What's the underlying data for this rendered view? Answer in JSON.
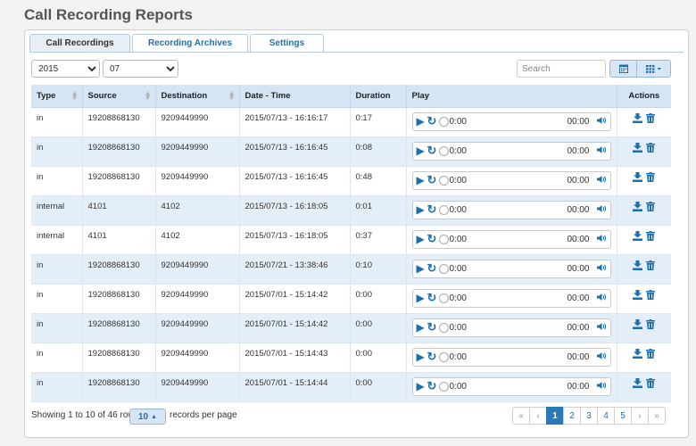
{
  "page": {
    "title": "Call Recording Reports"
  },
  "tabs": [
    {
      "label": "Call Recordings",
      "active": true
    },
    {
      "label": "Recording Archives",
      "active": false
    },
    {
      "label": "Settings",
      "active": false
    }
  ],
  "filters": {
    "year": "2015",
    "month": "07",
    "search_placeholder": "Search"
  },
  "columns": [
    "Type",
    "Source",
    "Destination",
    "Date - Time",
    "Duration",
    "Play",
    "Actions"
  ],
  "player": {
    "current_time": "0:00",
    "total_time": "00:00"
  },
  "rows": [
    {
      "type": "in",
      "source": "19208868130",
      "destination": "9209449990",
      "datetime": "2015/07/13 - 16:16:17",
      "duration": "0:17"
    },
    {
      "type": "in",
      "source": "19208868130",
      "destination": "9209449990",
      "datetime": "2015/07/13 - 16:16:45",
      "duration": "0:08"
    },
    {
      "type": "in",
      "source": "19208868130",
      "destination": "9209449990",
      "datetime": "2015/07/13 - 16:16:45",
      "duration": "0:48"
    },
    {
      "type": "internal",
      "source": "4101",
      "destination": "4102",
      "datetime": "2015/07/13 - 16:18:05",
      "duration": "0:01"
    },
    {
      "type": "internal",
      "source": "4101",
      "destination": "4102",
      "datetime": "2015/07/13 - 16:18:05",
      "duration": "0:37"
    },
    {
      "type": "in",
      "source": "19208868130",
      "destination": "9209449990",
      "datetime": "2015/07/21 - 13:38:46",
      "duration": "0:10"
    },
    {
      "type": "in",
      "source": "19208868130",
      "destination": "9209449990",
      "datetime": "2015/07/01 - 15:14:42",
      "duration": "0:00"
    },
    {
      "type": "in",
      "source": "19208868130",
      "destination": "9209449990",
      "datetime": "2015/07/01 - 15:14:42",
      "duration": "0:00"
    },
    {
      "type": "in",
      "source": "19208868130",
      "destination": "9209449990",
      "datetime": "2015/07/01 - 15:14:43",
      "duration": "0:00"
    },
    {
      "type": "in",
      "source": "19208868130",
      "destination": "9209449990",
      "datetime": "2015/07/01 - 15:14:44",
      "duration": "0:00"
    }
  ],
  "footer": {
    "showing": "Showing 1 to 10 of 46 rows",
    "per_page_value": "10",
    "per_page_label": "records per page"
  },
  "pagination": [
    "«",
    "‹",
    "1",
    "2",
    "3",
    "4",
    "5",
    "›",
    "»"
  ],
  "pagination_active": "1",
  "icons": {
    "play": "play-icon",
    "replay": "replay-icon",
    "volume": "volume-icon",
    "download": "download-icon",
    "delete": "trash-icon",
    "calendar": "calendar-icon",
    "grid": "grid-icon"
  },
  "colors": {
    "accent": "#2a7ab8",
    "header_bg": "#d6e5f3",
    "row_alt": "#e3eef8",
    "icon": "#1a6fae"
  }
}
